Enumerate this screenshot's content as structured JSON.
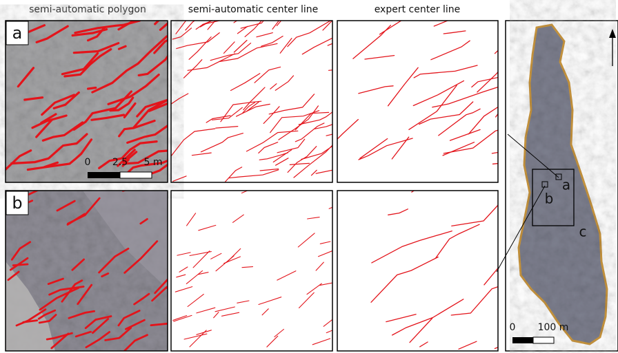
{
  "headers": [
    "semi-automatic polygon",
    "semi-automatic center line",
    "expert center line"
  ],
  "panel_labels": [
    "a",
    "b"
  ],
  "map_labels": [
    "a",
    "b",
    "c"
  ],
  "scale_bar_detail": [
    "0",
    "2.5",
    "5 m"
  ],
  "scale_bar_map": [
    "0",
    "100 m"
  ]
}
